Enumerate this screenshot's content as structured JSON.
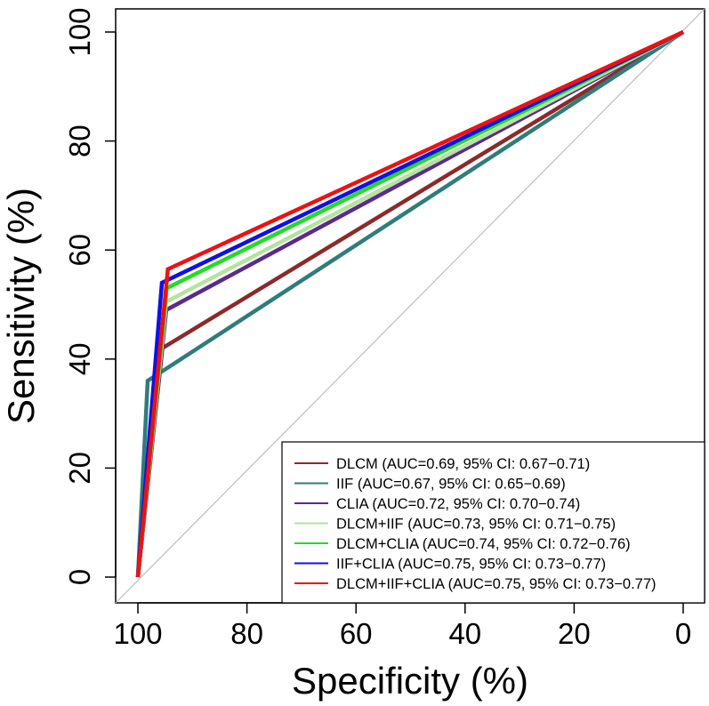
{
  "chart_data": {
    "type": "line",
    "title": "",
    "xlabel": "Specificity (%)",
    "ylabel": "Sensitivity (%)",
    "xlim": [
      104,
      -4
    ],
    "ylim": [
      -4,
      104
    ],
    "x_reversed": true,
    "x_ticks": [
      100,
      80,
      60,
      40,
      20,
      0
    ],
    "y_ticks": [
      0,
      20,
      40,
      60,
      80,
      100
    ],
    "x_tick_labels": [
      "100",
      "80",
      "60",
      "40",
      "20",
      "0"
    ],
    "y_tick_labels": [
      "0",
      "20",
      "40",
      "60",
      "80",
      "100"
    ],
    "reference_line": {
      "from": [
        100,
        0
      ],
      "to": [
        0,
        100
      ],
      "color": "#bebebe"
    },
    "legend_position": "bottom-right",
    "grid": false,
    "series": [
      {
        "name": "DLCM",
        "label": "DLCM (AUC=0.69, 95% CI: 0.67−0.71)",
        "color": "#8b2a2a",
        "x": [
          100,
          95.5,
          0
        ],
        "y": [
          0,
          42,
          100
        ]
      },
      {
        "name": "IIF",
        "label": "IIF (AUC=0.67, 95% CI: 0.65−0.69)",
        "color": "#2e7d7b",
        "x": [
          100,
          98.2,
          0
        ],
        "y": [
          0,
          36,
          100
        ]
      },
      {
        "name": "CLIA",
        "label": "CLIA (AUC=0.72, 95% CI: 0.70−0.74)",
        "color": "#5b2a8c",
        "x": [
          100,
          94.8,
          0
        ],
        "y": [
          0,
          49,
          100
        ]
      },
      {
        "name": "DLCM+IIF",
        "label": "DLCM+IIF (AUC=0.73, 95% CI: 0.71−0.75)",
        "color": "#b5e3a0",
        "x": [
          100,
          94.8,
          0
        ],
        "y": [
          0,
          50.5,
          100
        ]
      },
      {
        "name": "DLCM+CLIA",
        "label": "DLCM+CLIA (AUC=0.74, 95% CI: 0.72−0.76)",
        "color": "#22dd22",
        "x": [
          100,
          94.7,
          0
        ],
        "y": [
          0,
          53,
          100
        ]
      },
      {
        "name": "IIF+CLIA",
        "label": "IIF+CLIA (AUC=0.75, 95% CI: 0.73−0.77)",
        "color": "#1010e6",
        "x": [
          100,
          95.6,
          0
        ],
        "y": [
          0,
          54,
          100
        ]
      },
      {
        "name": "DLCM+IIF+CLIA",
        "label": "DLCM+IIF+CLIA (AUC=0.75, 95% CI: 0.73−0.77)",
        "color": "#ee1111",
        "x": [
          100,
          94.5,
          0
        ],
        "y": [
          0,
          56.5,
          100
        ]
      }
    ]
  }
}
